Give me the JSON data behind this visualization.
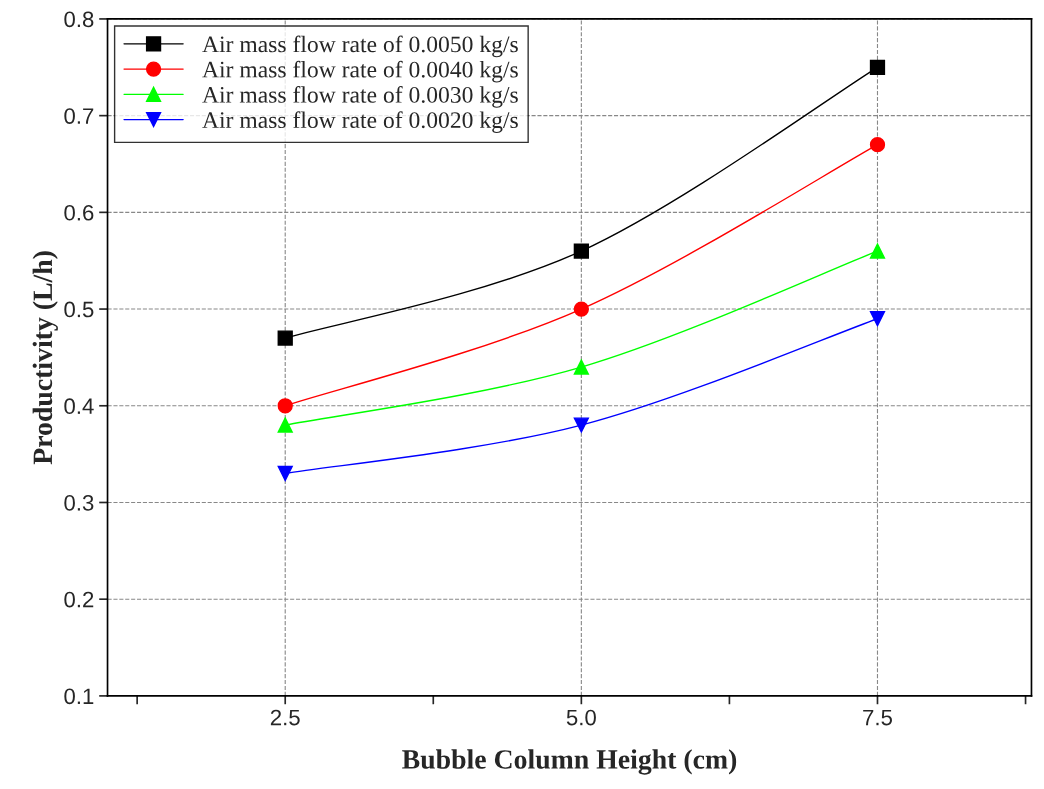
{
  "chart_data": {
    "type": "line",
    "xlabel": "Bubble Column Height (cm)",
    "ylabel": "Productivity (L/h)",
    "x": [
      2.5,
      5.0,
      7.5
    ],
    "series": [
      {
        "name": "Air mass flow rate of 0.0050 kg/s",
        "color": "#000000",
        "marker": "square",
        "values": [
          0.47,
          0.56,
          0.75
        ]
      },
      {
        "name": "Air mass flow rate of 0.0040 kg/s",
        "color": "#ff0000",
        "marker": "circle",
        "values": [
          0.4,
          0.5,
          0.67
        ]
      },
      {
        "name": "Air mass flow rate of 0.0030 kg/s",
        "color": "#00ff00",
        "marker": "triangle",
        "values": [
          0.38,
          0.44,
          0.56
        ]
      },
      {
        "name": "Air mass flow rate of 0.0020 kg/s",
        "color": "#0000ff",
        "marker": "triangle-down",
        "values": [
          0.33,
          0.38,
          0.49
        ]
      }
    ],
    "xlim": [
      1.0,
      8.8
    ],
    "xticks": [
      {
        "value": 1.25,
        "label": null
      },
      2.5,
      {
        "value": 3.75,
        "label": null
      },
      {
        "value": 5.0,
        "label": "5.0"
      },
      {
        "value": 6.25,
        "label": null
      },
      7.5,
      {
        "value": 8.75,
        "label": null
      }
    ],
    "ylim": [
      0.1,
      0.8
    ],
    "yticks": [
      0.1,
      0.2,
      0.3,
      0.4,
      0.5,
      0.6,
      0.7,
      0.8
    ],
    "grid": true,
    "legend": "top left",
    "line_style": "solid"
  }
}
